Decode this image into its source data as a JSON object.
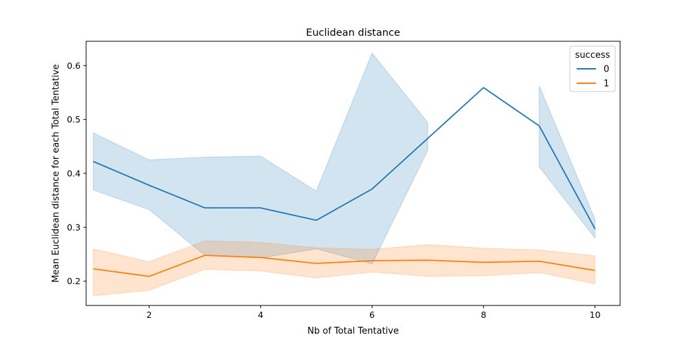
{
  "chart_data": {
    "type": "line",
    "title": "Euclidean distance",
    "xlabel": "Nb of Total Tentative",
    "ylabel": "Mean Euclidean distance for each Total Tentative",
    "xlim": [
      0.87,
      10.45
    ],
    "ylim": [
      0.155,
      0.645
    ],
    "xticks": [
      2,
      4,
      6,
      8,
      10
    ],
    "yticks": [
      0.2,
      0.3,
      0.4,
      0.5,
      0.6
    ],
    "ytick_labels": [
      "0.2",
      "0.3",
      "0.4",
      "0.5",
      "0.6"
    ],
    "grid": false,
    "legend": {
      "title": "success",
      "placement": "top-right"
    },
    "series": [
      {
        "name": "0",
        "color": "#1f77b4",
        "segments": [
          {
            "x": [
              1,
              2,
              3,
              4,
              5,
              6,
              7
            ],
            "y": [
              0.422,
              0.378,
              0.336,
              0.336,
              0.313,
              0.371,
              0.465
            ],
            "ci_low": [
              0.369,
              0.333,
              0.248,
              0.243,
              0.26,
              0.232,
              0.443
            ],
            "ci_high": [
              0.475,
              0.425,
              0.43,
              0.432,
              0.367,
              0.623,
              0.494
            ]
          },
          {
            "x": [
              7,
              8,
              9
            ],
            "y": [
              0.465,
              0.559,
              0.488
            ],
            "ci_low": null,
            "ci_high": null
          },
          {
            "x": [
              9,
              10
            ],
            "y": [
              0.488,
              0.297
            ],
            "ci_low": [
              0.412,
              0.28
            ],
            "ci_high": [
              0.562,
              0.315
            ]
          }
        ]
      },
      {
        "name": "1",
        "color": "#ff7f0e",
        "segments": [
          {
            "x": [
              1,
              2,
              3,
              4,
              5,
              6,
              7,
              8,
              9,
              10
            ],
            "y": [
              0.223,
              0.209,
              0.248,
              0.244,
              0.233,
              0.238,
              0.239,
              0.235,
              0.237,
              0.22
            ],
            "ci_low": [
              0.173,
              0.183,
              0.222,
              0.219,
              0.206,
              0.217,
              0.209,
              0.21,
              0.216,
              0.195
            ],
            "ci_high": [
              0.26,
              0.236,
              0.275,
              0.272,
              0.262,
              0.259,
              0.268,
              0.261,
              0.258,
              0.247
            ]
          }
        ]
      }
    ]
  }
}
